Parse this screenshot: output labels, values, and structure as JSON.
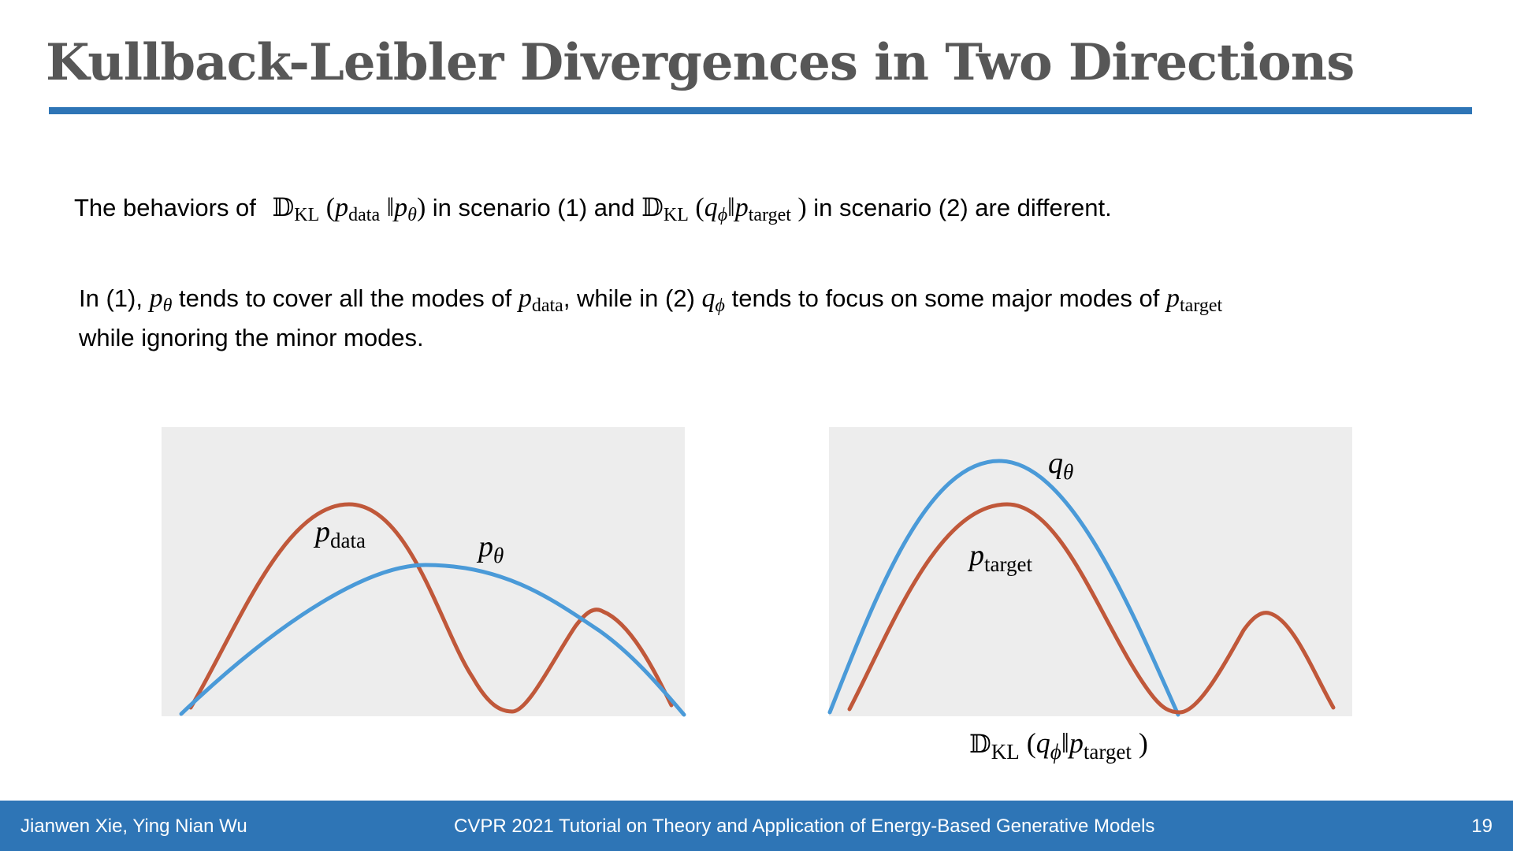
{
  "slide": {
    "title": "Kullback-Leibler Divergences in Two Directions"
  },
  "sentence1": {
    "pre": "The behaviors of",
    "kl_op": "𝔻",
    "kl_sub": "KL",
    "p_data": "p",
    "p_data_sub": "data",
    "p_theta": "p",
    "theta": "θ",
    "mid1": "in scenario (1)  and",
    "q_phi": "q",
    "phi": "ϕ",
    "p_target": "p",
    "p_target_sub": "target",
    "post": "in scenario (2) are different."
  },
  "sentence2": {
    "t1": "In (1),",
    "t2": "tends to cover all the modes of",
    "t3": ", while in (2)",
    "t4": "tends to focus on some major modes of",
    "line2": "while ignoring the minor modes."
  },
  "figure_left": {
    "label_p_data": "p",
    "label_p_data_sub": "data",
    "label_p_theta": "p",
    "label_p_theta_sub": "θ"
  },
  "figure_right": {
    "label_q_theta": "q",
    "label_q_theta_sub": "θ",
    "label_p_target": "p",
    "label_p_target_sub": "target",
    "caption_op": "𝔻",
    "caption_sub": "KL",
    "caption_q": "q",
    "caption_phi": "ϕ",
    "caption_p": "p",
    "caption_target": "target"
  },
  "colors": {
    "accent": "#2e75b6",
    "title": "#575757",
    "panel": "#ededed",
    "curve_blue": "#4a9ad8",
    "curve_orange": "#c0583a"
  },
  "footer": {
    "authors": "Jianwen Xie, Ying Nian Wu",
    "event": "CVPR 2021 Tutorial on Theory and Application of Energy-Based Generative Models",
    "page_number": "19"
  }
}
